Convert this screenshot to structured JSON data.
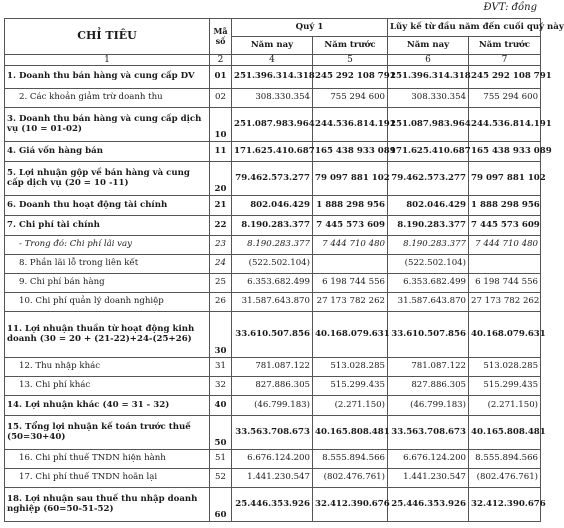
{
  "unit_note": "ĐVT: đồng",
  "header": {
    "chi_tieu": "CHỈ TIÊU",
    "ma_so": "Mã số",
    "quy": "Quý 1",
    "luy_ke": "Lũy kế từ đầu năm đến cuối quý này",
    "nam_nay": "Năm nay",
    "nam_truoc": "Năm trước"
  },
  "index_row": [
    "1",
    "2",
    "4",
    "5",
    "6",
    "7"
  ],
  "rows": [
    {
      "label": "1. Doanh thu bán hàng và cung cấp DV",
      "code": "01",
      "q_cur": "251.396.314.318",
      "q_prev": "245 292 108 791",
      "y_cur": "251.396.314.318",
      "y_prev": "245 292 108 791"
    },
    {
      "label": "2. Các khoản giảm trừ doanh thu",
      "code": "02",
      "q_cur": "308.330.354",
      "q_prev": "755 294 600",
      "y_cur": "308.330.354",
      "y_prev": "755 294 600"
    },
    {
      "label": "3. Doanh thu bán hàng và cung cấp dịch vụ (10 = 01-02)",
      "code": "10",
      "q_cur": "251.087.983.964",
      "q_prev": "244.536.814.191",
      "y_cur": "251.087.983.964",
      "y_prev": "244.536.814.191"
    },
    {
      "label": "4. Giá vốn hàng bán",
      "code": "11",
      "q_cur": "171.625.410.687",
      "q_prev": "165 438 933 089",
      "y_cur": "171.625.410.687",
      "y_prev": "165 438 933 089"
    },
    {
      "label": "5. Lợi nhuận gộp về bán hàng và cung cấp dịch vụ (20 = 10 -11)",
      "code": "20",
      "q_cur": "79.462.573.277",
      "q_prev": "79 097 881 102",
      "y_cur": "79.462.573.277",
      "y_prev": "79 097 881 102"
    },
    {
      "label": "6. Doanh thu hoạt động tài chính",
      "code": "21",
      "q_cur": "802.046.429",
      "q_prev": "1 888 298 956",
      "y_cur": "802.046.429",
      "y_prev": "1 888 298 956"
    },
    {
      "label": "7. Chi phí tài chính",
      "code": "22",
      "q_cur": "8.190.283.377",
      "q_prev": "7 445 573 609",
      "y_cur": "8.190.283.377",
      "y_prev": "7 445 573 609"
    },
    {
      "label": "- Trong đó: Chi phí lãi vay",
      "code": "23",
      "q_cur": "8.190.283.377",
      "q_prev": "7 444 710 480",
      "y_cur": "8.190.283.377",
      "y_prev": "7 444 710 480"
    },
    {
      "label": "8. Phần lãi lỗ trong liên kết",
      "code": "24",
      "q_cur": "(522.502.104)",
      "q_prev": "",
      "y_cur": "(522.502.104)",
      "y_prev": ""
    },
    {
      "label": "9. Chi phí bán hàng",
      "code": "25",
      "q_cur": "6.353.682.499",
      "q_prev": "6 198 744 556",
      "y_cur": "6.353.682.499",
      "y_prev": "6 198 744 556"
    },
    {
      "label": "10. Chi phí quản lý doanh nghiệp",
      "code": "26",
      "q_cur": "31.587.643.870",
      "q_prev": "27 173 782 262",
      "y_cur": "31.587.643.870",
      "y_prev": "27 173 782 262"
    },
    {
      "label": "11. Lợi nhuận thuần từ hoạt động kinh doanh (30 = 20 + (21-22)+24-(25+26)",
      "code": "30",
      "q_cur": "33.610.507.856",
      "q_prev": "40.168.079.631",
      "y_cur": "33.610.507.856",
      "y_prev": "40.168.079.631"
    },
    {
      "label": "12. Thu nhập khác",
      "code": "31",
      "q_cur": "781.087.122",
      "q_prev": "513.028.285",
      "y_cur": "781.087.122",
      "y_prev": "513.028.285"
    },
    {
      "label": "13. Chi phí khác",
      "code": "32",
      "q_cur": "827.886.305",
      "q_prev": "515.299.435",
      "y_cur": "827.886.305",
      "y_prev": "515.299.435"
    },
    {
      "label": "14. Lợi nhuận khác (40 = 31 - 32)",
      "code": "40",
      "q_cur": "(46.799.183)",
      "q_prev": "(2.271.150)",
      "y_cur": "(46.799.183)",
      "y_prev": "(2.271.150)"
    },
    {
      "label": "15. Tổng lợi nhuận kế toán trước thuế (50=30+40)",
      "code": "50",
      "q_cur": "33.563.708.673",
      "q_prev": "40.165.808.481",
      "y_cur": "33.563.708.673",
      "y_prev": "40.165.808.481"
    },
    {
      "label": "16. Chi phí thuế TNDN hiện hành",
      "code": "51",
      "q_cur": "6.676.124.200",
      "q_prev": "8.555.894.566",
      "y_cur": "6.676.124.200",
      "y_prev": "8.555.894.566"
    },
    {
      "label": "17. Chi phí thuế TNDN hoãn lại",
      "code": "52",
      "q_cur": "1.441.230.547",
      "q_prev": "(802.476.761)",
      "y_cur": "1.441.230.547",
      "y_prev": "(802.476.761)"
    },
    {
      "label": "18. Lợi nhuận sau thuế thu nhập doanh nghiệp (60=50-51-52)",
      "code": "60",
      "q_cur": "25.446.353.926",
      "q_prev": "32.412.390.676",
      "y_cur": "25.446.353.926",
      "y_prev": "32.412.390.676"
    }
  ]
}
